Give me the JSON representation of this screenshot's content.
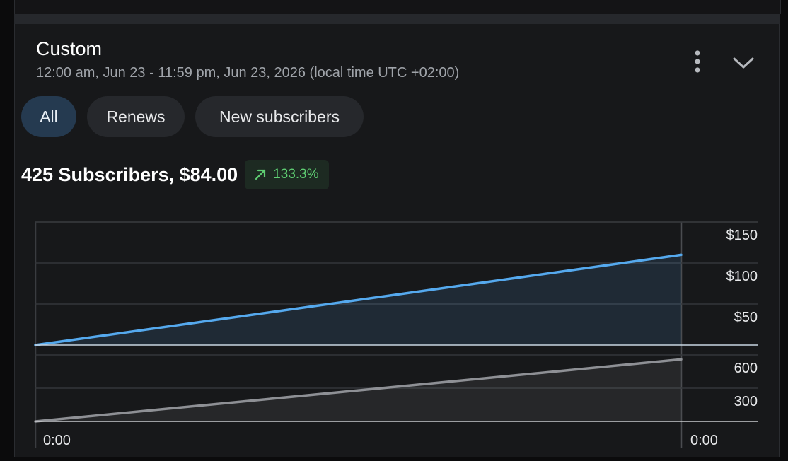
{
  "header": {
    "title": "Custom",
    "subtitle": "12:00 am, Jun 23 - 11:59 pm, Jun 23, 2026 (local time UTC +02:00)"
  },
  "icons": {
    "more": "more-vertical-icon",
    "expand": "chevron-down-icon",
    "trend": "arrow-up-right-icon"
  },
  "tabs": [
    {
      "label": "All",
      "active": true
    },
    {
      "label": "Renews",
      "active": false
    },
    {
      "label": "New subscribers",
      "active": false
    }
  ],
  "summary": {
    "text": "425 Subscribers, $84.00",
    "delta": "133.3%",
    "delta_color": "#5fcf73"
  },
  "colors": {
    "revenue_line": "#55a9ee",
    "subscribers_line": "#8e9095"
  },
  "chart_data": [
    {
      "type": "area",
      "series": [
        {
          "values": [
            0,
            110
          ]
        }
      ],
      "y_ticks": [
        "$150",
        "$100",
        "$50"
      ],
      "ylim": [
        0,
        150
      ],
      "grid": true
    },
    {
      "type": "area",
      "series": [
        {
          "values": [
            0,
            560
          ]
        }
      ],
      "y_ticks": [
        "600",
        "300"
      ],
      "ylim": [
        0,
        600
      ],
      "x_ticks": [
        "0:00",
        "0:00"
      ],
      "grid": true
    }
  ]
}
